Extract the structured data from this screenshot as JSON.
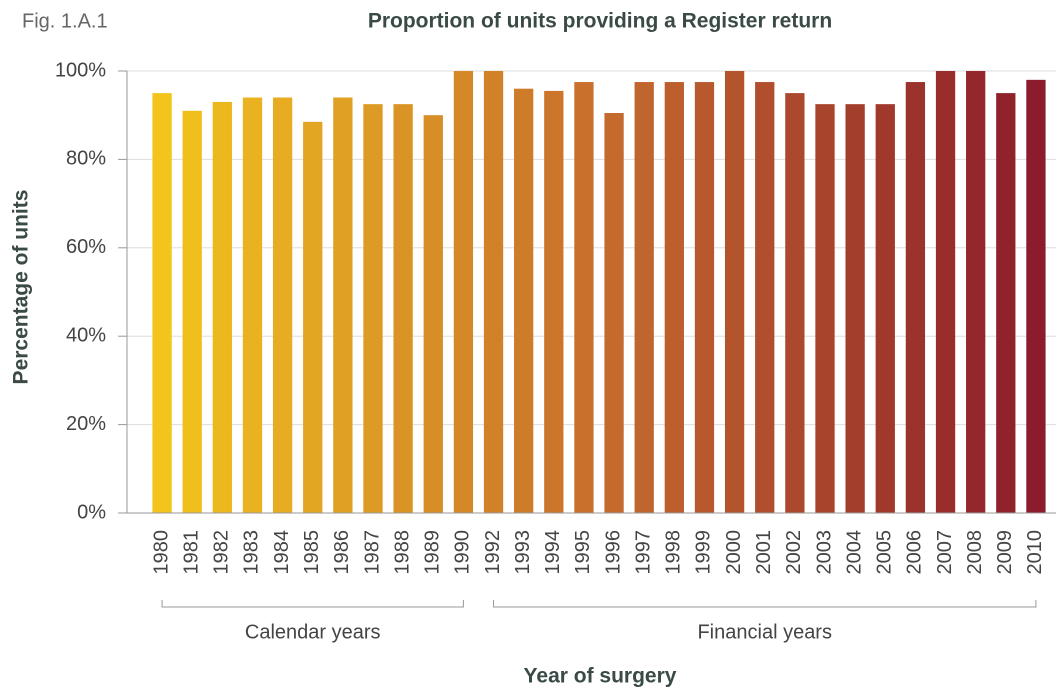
{
  "figure_label": "Fig. 1.A.1",
  "chart_data": {
    "type": "bar",
    "title": "Proportion of units providing a Register return",
    "x_label": "Year of surgery",
    "y_label": "Percentage of units",
    "categories": [
      "1980",
      "1981",
      "1982",
      "1983",
      "1984",
      "1985",
      "1986",
      "1987",
      "1988",
      "1989",
      "1990",
      "1992",
      "1993",
      "1994",
      "1995",
      "1996",
      "1997",
      "1998",
      "1999",
      "2000",
      "2001",
      "2002",
      "2003",
      "2004",
      "2005",
      "2006",
      "2007",
      "2008",
      "2009",
      "2010"
    ],
    "values": [
      95,
      91,
      93,
      94,
      94,
      88.5,
      94,
      92.5,
      92.5,
      90,
      100,
      100,
      96,
      95.5,
      97.5,
      90.5,
      97.5,
      97.5,
      97.5,
      100,
      97.5,
      95,
      92.5,
      92.5,
      92.5,
      97.5,
      100,
      100,
      95,
      98
    ],
    "colors": [
      "#f3c41c",
      "#c66d2d",
      "#8c1c2c"
    ],
    "groups": [
      {
        "label": "Calendar years",
        "first": "1980",
        "last": "1990"
      },
      {
        "label": "Financial years",
        "first": "1992",
        "last": "2010"
      }
    ],
    "ylim": [
      0,
      100
    ],
    "yticks": [
      {
        "value": 0,
        "label": "0%"
      },
      {
        "value": 20,
        "label": "20%"
      },
      {
        "value": 40,
        "label": "40%"
      },
      {
        "value": 60,
        "label": "60%"
      },
      {
        "value": 80,
        "label": "80%"
      },
      {
        "value": 100,
        "label": "100%"
      }
    ],
    "grid": true
  }
}
